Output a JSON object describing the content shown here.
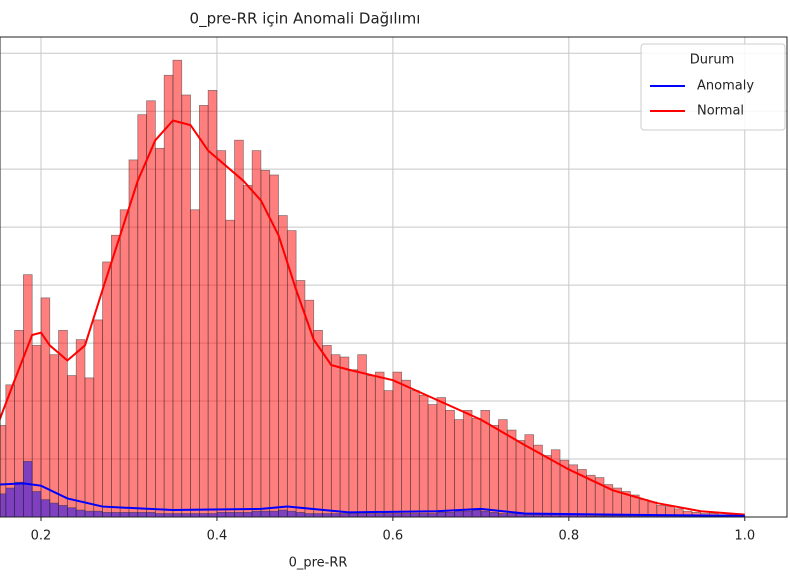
{
  "chart_data": {
    "type": "histogram",
    "title": "0_pre-RR için Anomali Dağılımı",
    "xlabel": "0_pre-RR",
    "legend_title": "Durum",
    "legend": "upper right",
    "grid": true,
    "xlim": [
      0.1534,
      1.048
    ],
    "ylim": [
      0,
      414
    ],
    "xticks": [
      0.2,
      0.4,
      0.6,
      0.8,
      {
        "value": 1,
        "label": "1.0"
      }
    ],
    "yticks": [
      0,
      50,
      100,
      150,
      200,
      250,
      300,
      350,
      400
    ],
    "bins": [
      0.15,
      0.16,
      0.17,
      0.18,
      0.19,
      0.2,
      0.21,
      0.22,
      0.23,
      0.24,
      0.25,
      0.26,
      0.27,
      0.28,
      0.29,
      0.3,
      0.31,
      0.32,
      0.33,
      0.34,
      0.35,
      0.36,
      0.37,
      0.38,
      0.39,
      0.4,
      0.41,
      0.42,
      0.43,
      0.44,
      0.45,
      0.46,
      0.47,
      0.48,
      0.49,
      0.5,
      0.51,
      0.52,
      0.53,
      0.54,
      0.55,
      0.56,
      0.57,
      0.58,
      0.59,
      0.6,
      0.61,
      0.62,
      0.63,
      0.64,
      0.65,
      0.66,
      0.67,
      0.68,
      0.69,
      0.7,
      0.71,
      0.72,
      0.73,
      0.74,
      0.75,
      0.76,
      0.77,
      0.78,
      0.79,
      0.8,
      0.81,
      0.82,
      0.83,
      0.84,
      0.85,
      0.86,
      0.87,
      0.88,
      0.89,
      0.9,
      0.91,
      0.92,
      0.93,
      0.94,
      0.95,
      0.96,
      0.97,
      0.98,
      0.99,
      1.0
    ],
    "series": [
      {
        "name": "Normal",
        "color": "red",
        "values": [
          79,
          114,
          161,
          209,
          148,
          189,
          140,
          161,
          122,
          153,
          120,
          170,
          220,
          243,
          265,
          308,
          347,
          359,
          318,
          381,
          394,
          364,
          265,
          355,
          368,
          316,
          256,
          325,
          286,
          316,
          299,
          295,
          260,
          247,
          204,
          187,
          161,
          148,
          140,
          138,
          127,
          140,
          122,
          125,
          109,
          125,
          118,
          109,
          105,
          97,
          103,
          92,
          84,
          92,
          85,
          92,
          79,
          84,
          75,
          66,
          71,
          62,
          53,
          58,
          49,
          45,
          41,
          36,
          34,
          28,
          25,
          22,
          19,
          15,
          13,
          10,
          9,
          7,
          5,
          4,
          3,
          3,
          2,
          2,
          1
        ],
        "kde_x": [
          0.153,
          0.17,
          0.19,
          0.2,
          0.21,
          0.23,
          0.25,
          0.27,
          0.29,
          0.31,
          0.33,
          0.35,
          0.37,
          0.39,
          0.41,
          0.43,
          0.45,
          0.47,
          0.49,
          0.51,
          0.53,
          0.55,
          0.6,
          0.65,
          0.7,
          0.75,
          0.8,
          0.85,
          0.9,
          0.95,
          1.0
        ],
        "kde_values": [
          84,
          118,
          157,
          159,
          148,
          135,
          148,
          196,
          243,
          290,
          325,
          342,
          338,
          316,
          303,
          290,
          273,
          243,
          196,
          153,
          131,
          127,
          118,
          101,
          84,
          62,
          41,
          23,
          12,
          5,
          2
        ]
      },
      {
        "name": "Anomaly",
        "color": "blue",
        "values": [
          20,
          25,
          30,
          48,
          22,
          15,
          12,
          10,
          8,
          6,
          5,
          5,
          4,
          4,
          4,
          4,
          4,
          4,
          3,
          3,
          3,
          3,
          3,
          3,
          3,
          4,
          4,
          4,
          4,
          5,
          5,
          5,
          6,
          5,
          4,
          3,
          3,
          3,
          3,
          3,
          3,
          3,
          3,
          3,
          3,
          3,
          3,
          3,
          3,
          3,
          4,
          4,
          5,
          5,
          6,
          5,
          4,
          3,
          3,
          3,
          2,
          2,
          2,
          2,
          2,
          2,
          2,
          1,
          1,
          1,
          1,
          1,
          1,
          1,
          1,
          1,
          1,
          1,
          1,
          1,
          1,
          1,
          1,
          1,
          1
        ],
        "kde_x": [
          0.153,
          0.18,
          0.2,
          0.23,
          0.27,
          0.35,
          0.45,
          0.48,
          0.55,
          0.65,
          0.7,
          0.75,
          0.85,
          1.0
        ],
        "kde_values": [
          28,
          29,
          27,
          16,
          9,
          6,
          7,
          9,
          4,
          5,
          7,
          3,
          2,
          1
        ]
      }
    ]
  }
}
